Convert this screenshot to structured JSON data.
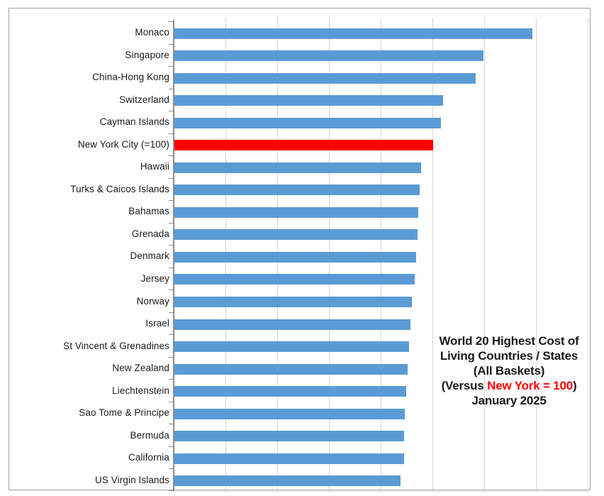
{
  "chart_data": {
    "type": "bar",
    "orientation": "horizontal",
    "title": "World 20 Highest Cost of Living Countries / States (All Baskets) (Versus New York = 100) January 2025",
    "title_lines": [
      {
        "parts": [
          {
            "text": "World 20 Highest Cost of",
            "color": "#1a1a1a"
          }
        ]
      },
      {
        "parts": [
          {
            "text": "Living Countries / States",
            "color": "#1a1a1a"
          }
        ]
      },
      {
        "parts": [
          {
            "text": "(All Baskets)",
            "color": "#1a1a1a"
          }
        ]
      },
      {
        "parts": [
          {
            "text": "(Versus ",
            "color": "#1a1a1a"
          },
          {
            "text": "New York = 100",
            "color": "#ff0000"
          },
          {
            "text": ")",
            "color": "#1a1a1a"
          }
        ]
      },
      {
        "parts": [
          {
            "text": "January 2025",
            "color": "#1a1a1a"
          }
        ]
      }
    ],
    "categories": [
      "Monaco",
      "Singapore",
      "China-Hong Kong",
      "Switzerland",
      "Cayman Islands",
      "New York City (=100)",
      "Hawaii",
      "Turks & Caicos Islands",
      "Bahamas",
      "Grenada",
      "Denmark",
      "Jersey",
      "Norway",
      "Israel",
      "St Vincent & Grenadines",
      "New Zealand",
      "Liechtenstein",
      "Sao Tome & Principe",
      "Bermuda",
      "California",
      "US Virgin Islands"
    ],
    "values": [
      138.3,
      119.4,
      116.4,
      103.8,
      103.0,
      100.0,
      95.4,
      94.8,
      94.3,
      93.9,
      93.4,
      92.9,
      91.8,
      91.3,
      90.7,
      90.2,
      89.6,
      89.1,
      88.9,
      88.7,
      87.4
    ],
    "highlight_index": 5,
    "bar_color_default": "#5b9bd5",
    "bar_color_highlight": "#ff0000",
    "xlim": [
      0,
      160
    ],
    "gridline_step": 20,
    "x_tick_labels_visible": false,
    "legend_position": "none",
    "grid": "vertical-only"
  },
  "style_colors": {
    "gridline": "#d6d6d6",
    "axis_line": "#8c8c8c",
    "tick": "#8c8c8c",
    "frame_border": "#a0a0a0",
    "plot_edge": "#d6d6d6",
    "label_text": "#1a1a1a",
    "background": "#ffffff"
  }
}
